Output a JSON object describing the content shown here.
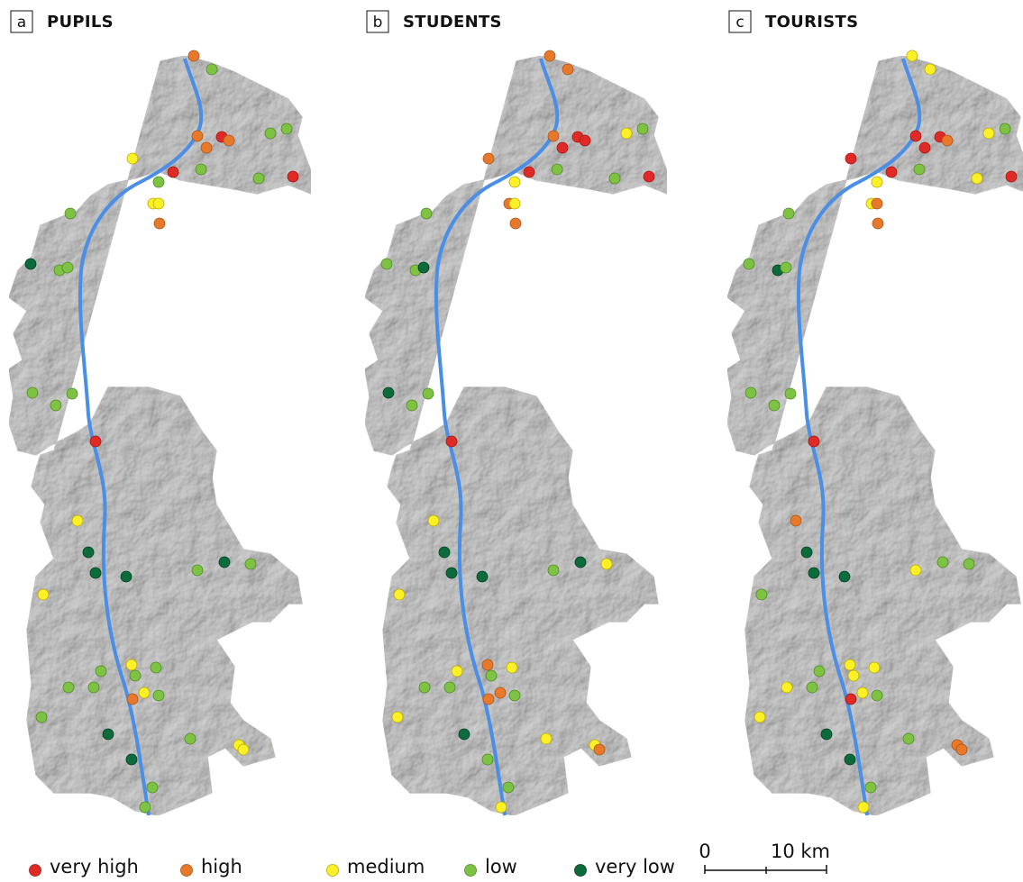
{
  "panels": [
    {
      "letter": "a",
      "title": "PUPILS"
    },
    {
      "letter": "b",
      "title": "STUDENTS"
    },
    {
      "letter": "c",
      "title": "TOURISTS"
    }
  ],
  "legend": [
    "very high",
    "high",
    "medium",
    "low",
    "very low"
  ],
  "scale_bar": {
    "start": "0",
    "end": "10 km"
  }
}
